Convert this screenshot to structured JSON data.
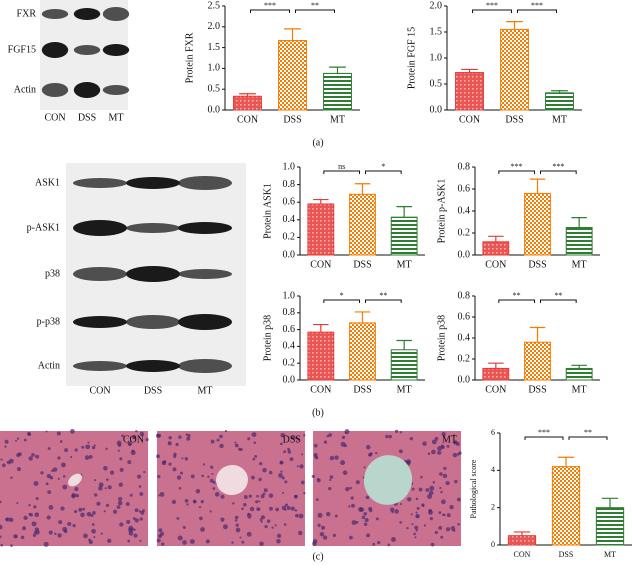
{
  "chart_data": [
    {
      "type": "bar",
      "ylabel": "Protein FXR",
      "categories": [
        "CON",
        "DSS",
        "MT"
      ],
      "values": [
        0.33,
        1.67,
        0.88
      ],
      "errors": [
        0.06,
        0.28,
        0.15
      ],
      "colors": [
        "#e53935",
        "#f57c00",
        "#2e7d32"
      ],
      "ylim": [
        0,
        2.5
      ],
      "yticks": [
        {
          "value": 0,
          "label": "0.0"
        },
        0.5,
        {
          "value": 1,
          "label": "1.0"
        },
        1.5,
        {
          "value": 2,
          "label": "2.0"
        },
        2.5
      ],
      "significance": [
        "***",
        "**"
      ]
    },
    {
      "type": "bar",
      "ylabel": "Protein FGF 15",
      "categories": [
        "CON",
        "DSS",
        "MT"
      ],
      "values": [
        0.72,
        1.55,
        0.33
      ],
      "errors": [
        0.06,
        0.15,
        0.04
      ],
      "colors": [
        "#e53935",
        "#f57c00",
        "#2e7d32"
      ],
      "ylim": [
        0,
        2
      ],
      "yticks": [
        {
          "value": 0,
          "label": "0.0"
        },
        0.5,
        {
          "value": 1,
          "label": "1.0"
        },
        1.5,
        {
          "value": 2,
          "label": "2.0"
        }
      ],
      "significance": [
        "***",
        "***"
      ]
    },
    {
      "type": "bar",
      "ylabel": "Protein ASK1",
      "categories": [
        "CON",
        "DSS",
        "MT"
      ],
      "values": [
        0.58,
        0.69,
        0.43
      ],
      "errors": [
        0.05,
        0.12,
        0.12
      ],
      "colors": [
        "#e53935",
        "#f57c00",
        "#2e7d32"
      ],
      "ylim": [
        0,
        1
      ],
      "yticks": [
        {
          "value": 0,
          "label": "0.0"
        },
        0.2,
        0.4,
        0.6,
        0.8,
        {
          "value": 1,
          "label": "1.0"
        }
      ],
      "significance": [
        "ns",
        "*"
      ]
    },
    {
      "type": "bar",
      "ylabel": "Protein p-ASK1",
      "categories": [
        "CON",
        "DSS",
        "MT"
      ],
      "values": [
        0.12,
        0.56,
        0.25
      ],
      "errors": [
        0.05,
        0.13,
        0.09
      ],
      "colors": [
        "#e53935",
        "#f57c00",
        "#2e7d32"
      ],
      "ylim": [
        0,
        0.8
      ],
      "yticks": [
        {
          "value": 0,
          "label": "0.0"
        },
        0.2,
        0.4,
        0.6,
        0.8
      ],
      "significance": [
        "***",
        "***"
      ]
    },
    {
      "type": "bar",
      "ylabel": "Protein p38",
      "categories": [
        "CON",
        "DSS",
        "MT"
      ],
      "values": [
        0.57,
        0.68,
        0.36
      ],
      "errors": [
        0.09,
        0.13,
        0.11
      ],
      "colors": [
        "#e53935",
        "#f57c00",
        "#2e7d32"
      ],
      "ylim": [
        0,
        1
      ],
      "yticks": [
        {
          "value": 0,
          "label": "0.0"
        },
        0.2,
        0.4,
        0.6,
        0.8,
        {
          "value": 1,
          "label": "1.0"
        }
      ],
      "significance": [
        "*",
        "**"
      ]
    },
    {
      "type": "bar",
      "ylabel": "Protein p38",
      "categories": [
        "CON",
        "DSS",
        "MT"
      ],
      "values": [
        0.11,
        0.36,
        0.11
      ],
      "errors": [
        0.05,
        0.14,
        0.03
      ],
      "colors": [
        "#e53935",
        "#f57c00",
        "#2e7d32"
      ],
      "ylim": [
        0,
        0.8
      ],
      "yticks": [
        {
          "value": 0,
          "label": "0.0"
        },
        0.2,
        0.4,
        0.6,
        0.8
      ],
      "significance": [
        "**",
        "**"
      ]
    },
    {
      "type": "bar",
      "ylabel": "Pathological score",
      "categories": [
        "CON",
        "DSS",
        "MT"
      ],
      "values": [
        0.5,
        4.2,
        2.0
      ],
      "errors": [
        0.2,
        0.5,
        0.5
      ],
      "colors": [
        "#e53935",
        "#f57c00",
        "#2e7d32"
      ],
      "ylim": [
        0,
        6
      ],
      "yticks": [
        0,
        2,
        4,
        6
      ],
      "significance": [
        "***",
        "**"
      ]
    }
  ],
  "panel_a": {
    "label": "(a)",
    "blot_rows": [
      "FXR",
      "FGF15",
      "Actin"
    ],
    "lanes": [
      "CON",
      "DSS",
      "MT"
    ]
  },
  "panel_b": {
    "label": "(b)",
    "blot_rows": [
      "ASK1",
      "p-ASK1",
      "p38",
      "p-p38",
      "Actin"
    ],
    "lanes": [
      "CON",
      "DSS",
      "MT"
    ]
  },
  "panel_c": {
    "label": "(c)",
    "images": [
      "CON",
      "DSS",
      "MT"
    ]
  }
}
